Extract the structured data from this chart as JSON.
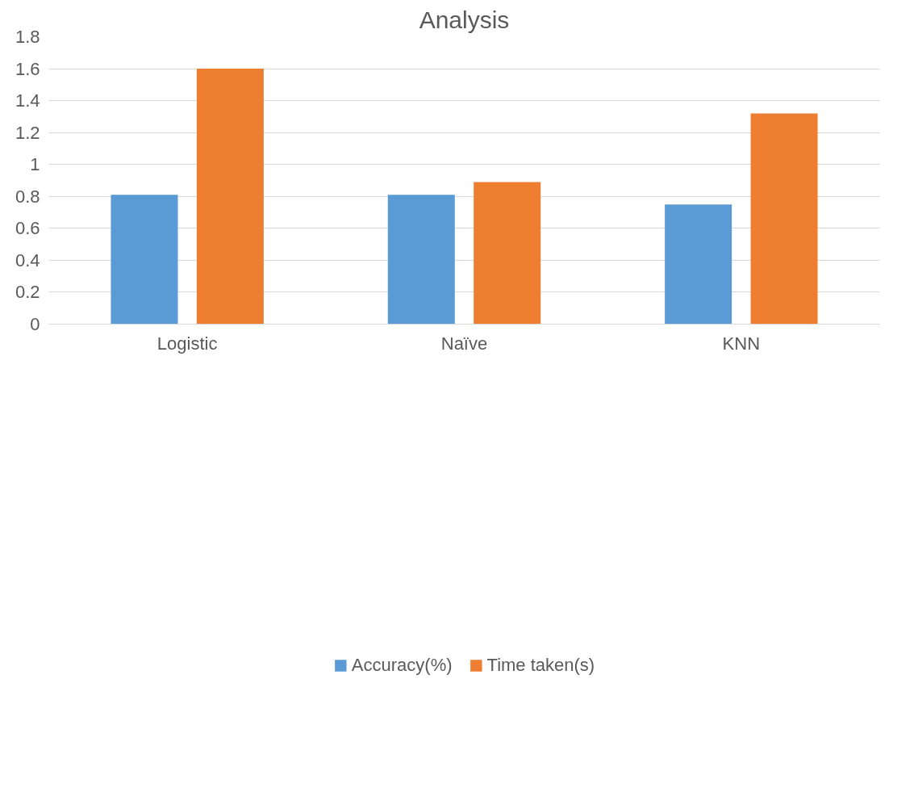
{
  "chart_data": {
    "type": "bar",
    "title": "Analysis",
    "categories": [
      "Logistic",
      "Naïve",
      "KNN"
    ],
    "series": [
      {
        "name": "Accuracy(%)",
        "color": "#5b9bd5",
        "values": [
          0.81,
          0.81,
          0.75
        ]
      },
      {
        "name": "Time taken(s)",
        "color": "#ed7d31",
        "values": [
          1.6,
          0.89,
          1.32
        ]
      }
    ],
    "ylim": [
      0,
      1.8
    ],
    "yticks": [
      0,
      0.2,
      0.4,
      0.6,
      0.8,
      1,
      1.2,
      1.4,
      1.6,
      1.8
    ],
    "grid": "y",
    "legend": "bottom"
  }
}
